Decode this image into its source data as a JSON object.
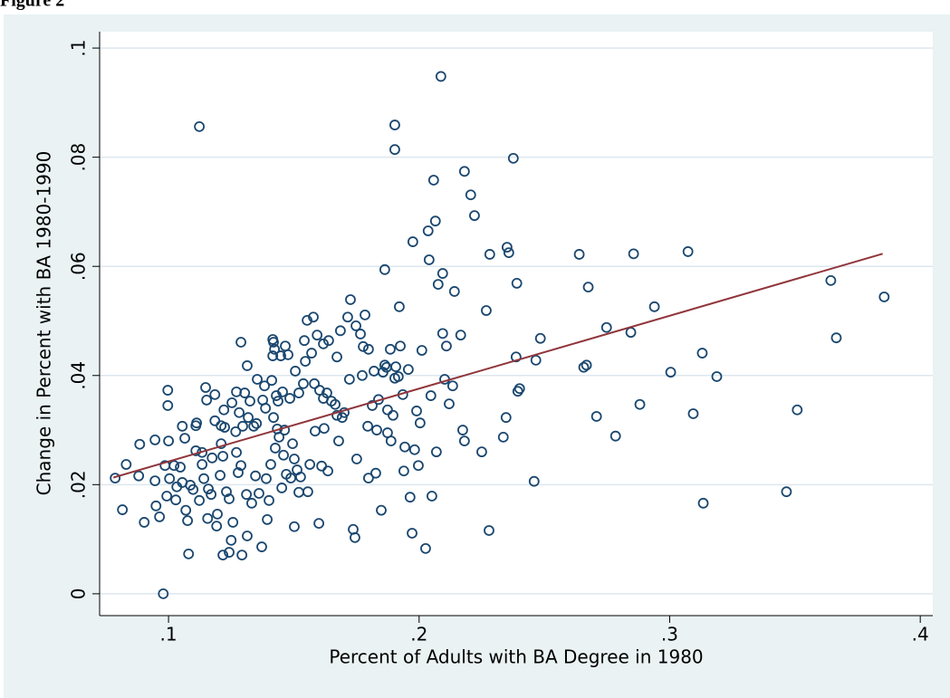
{
  "chart_data": {
    "type": "scatter",
    "title": "Figure 2",
    "x_label": "Percent of Adults with BA Degree in 1980",
    "y_label": "Change in Percent with BA 1980-1990",
    "xlim": [
      0.0725,
      0.405
    ],
    "ylim": [
      -0.004,
      0.103
    ],
    "xticks": [
      {
        "value": 0.1,
        "label": ".1"
      },
      {
        "value": 0.2,
        "label": ".2"
      },
      {
        "value": 0.3,
        "label": ".3"
      },
      {
        "value": 0.4,
        "label": ".4"
      }
    ],
    "yticks": [
      0,
      {
        "value": 0.02,
        "label": ".02"
      },
      {
        "value": 0.04,
        "label": ".04"
      },
      {
        "value": 0.06,
        "label": ".06"
      },
      {
        "value": 0.08,
        "label": ".08"
      },
      {
        "value": 0.1,
        "label": ".1"
      }
    ],
    "grid": true,
    "color": "#1a476f",
    "x": [
      0.0787,
      0.0816,
      0.0831,
      0.0881,
      0.0885,
      0.0903,
      0.0946,
      0.0946,
      0.095,
      0.0964,
      0.0979,
      0.0986,
      0.0993,
      0.0997,
      0.0997,
      0.1,
      0.1004,
      0.1022,
      0.1029,
      0.1033,
      0.1047,
      0.1055,
      0.1055,
      0.1065,
      0.1069,
      0.1076,
      0.108,
      0.1087,
      0.1098,
      0.1109,
      0.1109,
      0.1112,
      0.1123,
      0.1134,
      0.1134,
      0.1141,
      0.1148,
      0.1152,
      0.1156,
      0.1159,
      0.117,
      0.1174,
      0.1185,
      0.1185,
      0.1192,
      0.1195,
      0.1206,
      0.121,
      0.121,
      0.1217,
      0.1217,
      0.1221,
      0.1224,
      0.1231,
      0.1242,
      0.1242,
      0.125,
      0.1253,
      0.1257,
      0.1268,
      0.1271,
      0.1271,
      0.1278,
      0.1282,
      0.1289,
      0.1289,
      0.1293,
      0.1296,
      0.1304,
      0.1311,
      0.1314,
      0.1314,
      0.1318,
      0.1325,
      0.1332,
      0.134,
      0.1347,
      0.1351,
      0.1354,
      0.1361,
      0.1372,
      0.1376,
      0.1383,
      0.1387,
      0.139,
      0.1394,
      0.1401,
      0.1408,
      0.1412,
      0.1416,
      0.1416,
      0.1419,
      0.1419,
      0.1423,
      0.1426,
      0.143,
      0.1434,
      0.1437,
      0.1441,
      0.1448,
      0.1452,
      0.1455,
      0.1459,
      0.1463,
      0.1466,
      0.147,
      0.1477,
      0.1484,
      0.1488,
      0.1495,
      0.1502,
      0.1502,
      0.1506,
      0.1513,
      0.152,
      0.152,
      0.1527,
      0.1538,
      0.1542,
      0.1546,
      0.1553,
      0.1556,
      0.1564,
      0.1571,
      0.1578,
      0.1582,
      0.1585,
      0.1593,
      0.16,
      0.1603,
      0.1611,
      0.1618,
      0.1618,
      0.1621,
      0.1632,
      0.1636,
      0.1639,
      0.165,
      0.1665,
      0.1672,
      0.1672,
      0.1679,
      0.1686,
      0.1693,
      0.1701,
      0.1715,
      0.1722,
      0.1726,
      0.1737,
      0.1744,
      0.1748,
      0.1751,
      0.1766,
      0.1773,
      0.1777,
      0.1784,
      0.1795,
      0.1798,
      0.1798,
      0.1813,
      0.182,
      0.1827,
      0.1831,
      0.1838,
      0.1849,
      0.1856,
      0.1863,
      0.1863,
      0.187,
      0.1874,
      0.1874,
      0.1885,
      0.1888,
      0.1896,
      0.1903,
      0.1907,
      0.1917,
      0.1921,
      0.1925,
      0.1935,
      0.1939,
      0.1943,
      0.1957,
      0.1964,
      0.1972,
      0.1975,
      0.1982,
      0.199,
      0.1997,
      0.2004,
      0.2011,
      0.2026,
      0.2036,
      0.204,
      0.2047,
      0.2051,
      0.2058,
      0.2065,
      0.2069,
      0.2076,
      0.2087,
      0.2094,
      0.2094,
      0.2102,
      0.2109,
      0.212,
      0.2134,
      0.2141,
      0.2166,
      0.2174,
      0.2181,
      0.2181,
      0.2206,
      0.2221,
      0.225,
      0.2268,
      0.2279,
      0.2282,
      0.2336,
      0.2347,
      0.2351,
      0.2358,
      0.2376,
      0.2387,
      0.239,
      0.2394,
      0.2401,
      0.2459,
      0.2466,
      0.2484,
      0.2639,
      0.2657,
      0.2668,
      0.2675,
      0.2708,
      0.2748,
      0.2784,
      0.2845,
      0.2856,
      0.2881,
      0.2939,
      0.3004,
      0.3073,
      0.3094,
      0.313,
      0.3134,
      0.3188,
      0.3466,
      0.3509,
      0.3643,
      0.3665,
      0.3856,
      0.1123,
      0.1903,
      0.1903
    ],
    "values": [
      0.0212,
      0.0154,
      0.0237,
      0.0216,
      0.0274,
      0.0131,
      0.0282,
      0.0207,
      0.0161,
      0.0141,
      0,
      0.0235,
      0.0179,
      0.0373,
      0.0345,
      0.028,
      0.0211,
      0.0235,
      0.0172,
      0.0196,
      0.0232,
      0.0307,
      0.0204,
      0.0285,
      0.0153,
      0.0134,
      0.0073,
      0.0199,
      0.0191,
      0.0262,
      0.0308,
      0.0313,
      0.0171,
      0.0237,
      0.0259,
      0.0211,
      0.0378,
      0.0355,
      0.0138,
      0.0192,
      0.0182,
      0.0249,
      0.0365,
      0.0317,
      0.0124,
      0.0146,
      0.0217,
      0.0275,
      0.0308,
      0.0071,
      0.0252,
      0.0337,
      0.0305,
      0.0187,
      0.0076,
      0.0174,
      0.0098,
      0.035,
      0.0131,
      0.0297,
      0.037,
      0.0259,
      0.0222,
      0.0332,
      0.0235,
      0.0461,
      0.0071,
      0.0307,
      0.0368,
      0.0182,
      0.0106,
      0.0418,
      0.0323,
      0.0353,
      0.0166,
      0.0307,
      0.0216,
      0.0312,
      0.0393,
      0.0184,
      0.0086,
      0.0355,
      0.0381,
      0.034,
      0.0211,
      0.0136,
      0.0171,
      0.0237,
      0.0391,
      0.0436,
      0.0466,
      0.0461,
      0.0323,
      0.0448,
      0.0267,
      0.0363,
      0.0302,
      0.0353,
      0.0287,
      0.0436,
      0.0194,
      0.037,
      0.0254,
      0.03,
      0.0454,
      0.0219,
      0.0438,
      0.0358,
      0.0212,
      0.0275,
      0.0123,
      0.0247,
      0.0408,
      0.0227,
      0.0186,
      0.0368,
      0.0214,
      0.0385,
      0.0464,
      0.0426,
      0.0501,
      0.0187,
      0.0237,
      0.0441,
      0.0507,
      0.0385,
      0.0298,
      0.0474,
      0.0129,
      0.0373,
      0.0234,
      0.0358,
      0.0458,
      0.0303,
      0.0368,
      0.0225,
      0.0464,
      0.0353,
      0.0347,
      0.0434,
      0.0327,
      0.028,
      0.0482,
      0.0323,
      0.0332,
      0.0507,
      0.0393,
      0.0539,
      0.0118,
      0.0103,
      0.0491,
      0.0247,
      0.0476,
      0.04,
      0.0453,
      0.0511,
      0.0307,
      0.0448,
      0.0212,
      0.0345,
      0.0408,
      0.0221,
      0.03,
      0.0356,
      0.0153,
      0.0406,
      0.0594,
      0.0419,
      0.0415,
      0.0295,
      0.0337,
      0.0448,
      0.028,
      0.0327,
      0.0395,
      0.0416,
      0.0398,
      0.0526,
      0.0454,
      0.0365,
      0.0225,
      0.0269,
      0.0411,
      0.0177,
      0.0111,
      0.0645,
      0.0264,
      0.0335,
      0.0235,
      0.0313,
      0.0446,
      0.0083,
      0.0665,
      0.0612,
      0.0363,
      0.0179,
      0.0758,
      0.0683,
      0.026,
      0.0567,
      0.0948,
      0.0587,
      0.0477,
      0.0393,
      0.0454,
      0.0348,
      0.0381,
      0.0554,
      0.0474,
      0.03,
      0.0774,
      0.028,
      0.0731,
      0.0693,
      0.026,
      0.0519,
      0.0116,
      0.0622,
      0.0287,
      0.0323,
      0.0635,
      0.0625,
      0.0798,
      0.0434,
      0.0569,
      0.0371,
      0.0376,
      0.0206,
      0.0428,
      0.0468,
      0.0622,
      0.0415,
      0.0419,
      0.0562,
      0.0325,
      0.0488,
      0.0289,
      0.0479,
      0.0623,
      0.0347,
      0.0526,
      0.0406,
      0.0627,
      0.033,
      0.0441,
      0.0166,
      0.0398,
      0.0187,
      0.0337,
      0.0574,
      0.0469,
      0.0544,
      0.0856,
      0.0859,
      0.0814
    ],
    "fit_line": {
      "x": [
        0.078,
        0.385
      ],
      "values": [
        0.0213,
        0.0623
      ],
      "color": "#90353b"
    }
  }
}
